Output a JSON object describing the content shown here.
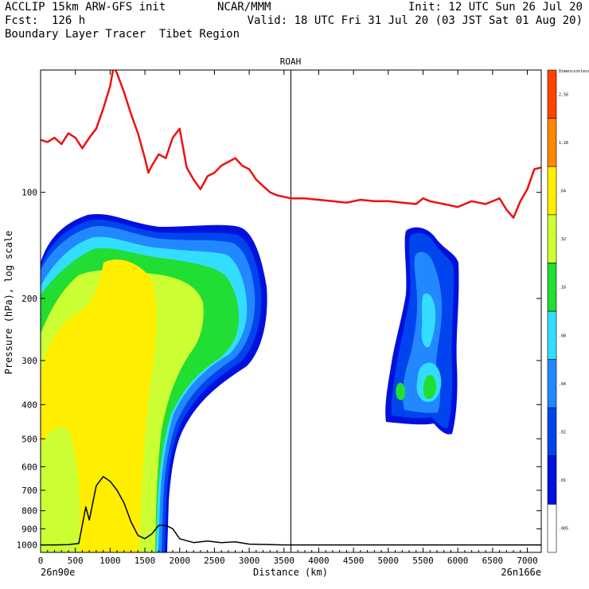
{
  "header": {
    "line1_left": "ACCLIP 15km ARW-GFS init",
    "line1_mid": "NCAR/MMM",
    "line1_right": "Init: 12 UTC Sun 26 Jul 20",
    "line2_left": "Fcst:  126 h",
    "line2_right": "Valid: 18 UTC Fri 31 Jul 20 (03 JST Sat 01 Aug 20)",
    "line3_left": "Boundary Layer Tracer  Tibet Region"
  },
  "chart_data": {
    "type": "contour-cross-section",
    "title": "ROAH",
    "xlabel": "Distance (km)",
    "ylabel": "Pressure (hPa), log scale",
    "x_start_label": "26n90e",
    "x_end_label": "26n166e",
    "xlim": [
      0,
      7200
    ],
    "ylim_hpa": [
      1050,
      45
    ],
    "y_scale": "log",
    "x_ticks": [
      "0",
      "500",
      "1000",
      "1500",
      "2000",
      "2500",
      "3000",
      "3500",
      "4000",
      "4500",
      "5000",
      "5500",
      "6000",
      "6500",
      "7000"
    ],
    "y_ticks": [
      "100",
      "200",
      "300",
      "400",
      "500",
      "600",
      "700",
      "800",
      "900",
      "1000"
    ],
    "vertical_marker_km": 3600,
    "legend": {
      "placement": "right",
      "unit_label": "Dimensionless",
      "levels": [
        ".005",
        ".01",
        ".02",
        ".04",
        ".08",
        ".16",
        ".32",
        ".64",
        "1.28",
        "2.56"
      ],
      "colors": [
        "#ffffff",
        "#0011dd",
        "#0044ee",
        "#2288ff",
        "#33ddff",
        "#22dd33",
        "#ccff33",
        "#ffee00",
        "#ff8800",
        "#ff4400"
      ]
    },
    "tropopause_line": {
      "color": "#ee1111",
      "x_km": [
        0,
        100,
        200,
        300,
        400,
        500,
        600,
        700,
        800,
        900,
        1000,
        1050,
        1100,
        1200,
        1300,
        1400,
        1500,
        1550,
        1600,
        1700,
        1800,
        1900,
        2000,
        2100,
        2200,
        2300,
        2400,
        2500,
        2600,
        2700,
        2800,
        2900,
        3000,
        3100,
        3200,
        3300,
        3400,
        3500,
        3600,
        3800,
        4000,
        4200,
        4400,
        4600,
        4800,
        5000,
        5200,
        5400,
        5500,
        5600,
        5800,
        6000,
        6200,
        6400,
        6600,
        6700,
        6800,
        6900,
        7000,
        7100,
        7200
      ],
      "p_hpa": [
        71,
        72,
        70,
        73,
        68,
        70,
        75,
        70,
        66,
        58,
        50,
        44,
        46,
        52,
        60,
        68,
        80,
        88,
        84,
        78,
        80,
        70,
        66,
        85,
        92,
        98,
        90,
        88,
        84,
        82,
        80,
        84,
        86,
        92,
        96,
        100,
        102,
        103,
        104,
        104,
        105,
        106,
        107,
        105,
        106,
        106,
        107,
        108,
        104,
        106,
        108,
        110,
        106,
        108,
        104,
        112,
        118,
        106,
        98,
        86,
        85
      ]
    },
    "terrain_line": {
      "color": "#000000",
      "x_km": [
        0,
        200,
        400,
        550,
        650,
        700,
        800,
        900,
        1000,
        1100,
        1200,
        1300,
        1400,
        1500,
        1600,
        1700,
        1800,
        1900,
        2000,
        2200,
        2400,
        2600,
        2800,
        3000,
        3500,
        4000,
        5000,
        6000,
        7000,
        7200
      ],
      "p_hpa": [
        1000,
        1000,
        998,
        990,
        780,
        850,
        680,
        640,
        660,
        700,
        760,
        860,
        940,
        960,
        930,
        880,
        880,
        900,
        960,
        985,
        975,
        985,
        980,
        995,
        1000,
        1000,
        1000,
        1000,
        1000,
        1000
      ]
    }
  }
}
